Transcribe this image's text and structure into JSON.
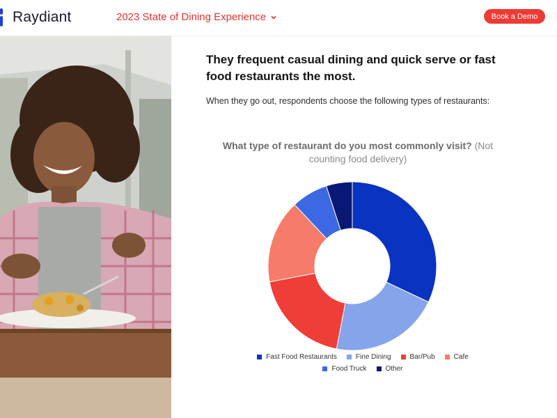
{
  "header": {
    "logo_text": "Raydiant",
    "nav_title": "2023 State of Dining Experience",
    "cta_label": "Book a Demo"
  },
  "main": {
    "headline": "They frequent casual dining and quick serve or fast food restaurants the most.",
    "subtext": "When they go out, respondents choose the following types of restaurants:"
  },
  "colors": {
    "brand_red": "#e3342f",
    "logo_blue": "#1e40d8"
  },
  "chart_data": {
    "type": "pie",
    "donut": true,
    "title": "What type of restaurant do you most commonly visit?",
    "subtitle": "(Not counting food delivery)",
    "legend_position": "bottom",
    "categories": [
      "Fast Food Restaurants",
      "Fine Dining",
      "Bar/Pub",
      "Cafe",
      "Food Truck",
      "Other"
    ],
    "values": [
      32,
      21,
      19,
      16,
      7,
      5
    ],
    "colors": [
      "#0b33c2",
      "#86a4ea",
      "#ef3e38",
      "#f77b6a",
      "#3d68e3",
      "#0a1875"
    ]
  }
}
